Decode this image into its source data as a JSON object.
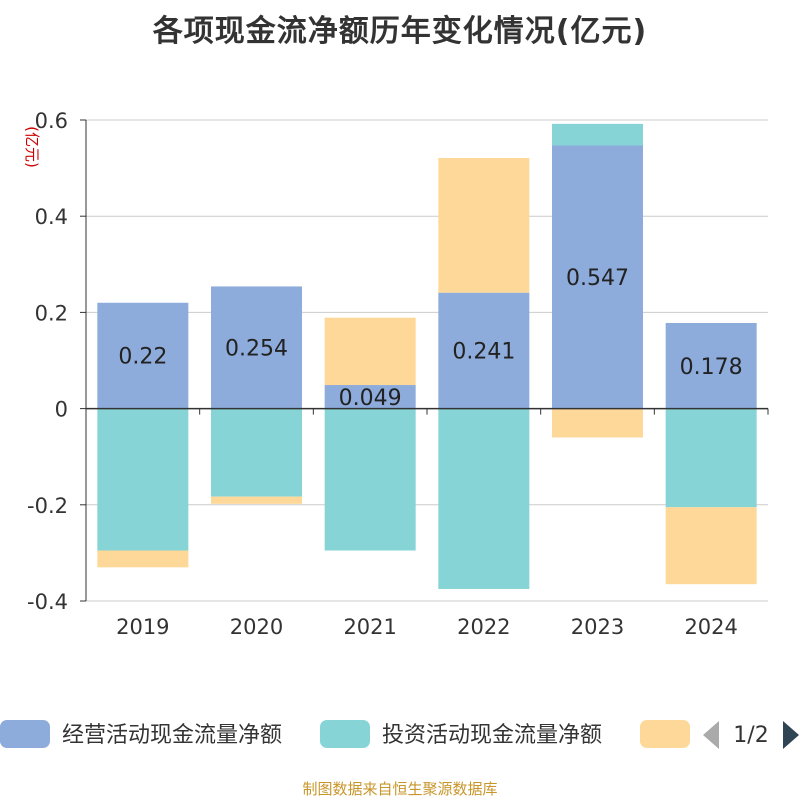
{
  "title": "各项现金流净额历年变化情况(亿元)",
  "footer": "制图数据来自恒生聚源数据库",
  "colors": {
    "operating": "#8dabdb",
    "investing": "#86d4d6",
    "financing": "#fed898",
    "axis": "#333333",
    "grid": "#cccccc",
    "unit": "#cc0000",
    "nav_active": "#2f4554",
    "nav_inactive": "#aaaaaa"
  },
  "legend": {
    "page_indicator": "1/2",
    "prev_icon": "triangle-left-icon",
    "next_icon": "triangle-right-icon"
  },
  "chart_data": {
    "type": "bar",
    "stacked": true,
    "unit_label": "(亿元)",
    "categories": [
      "2019",
      "2020",
      "2021",
      "2022",
      "2023",
      "2024"
    ],
    "ylim": [
      -0.4,
      0.6
    ],
    "yticks": [
      -0.4,
      -0.2,
      0,
      0.2,
      0.4,
      0.6
    ],
    "ytick_labels": [
      "-0.4",
      "-0.2",
      "0",
      "0.2",
      "0.4",
      "0.6"
    ],
    "grid": true,
    "series": [
      {
        "name": "经营活动现金流量净额",
        "color_key": "operating",
        "values": [
          0.22,
          0.254,
          0.049,
          0.241,
          0.547,
          0.178
        ],
        "labels": [
          "0.22",
          "0.254",
          "0.049",
          "0.241",
          "0.547",
          "0.178"
        ]
      },
      {
        "name": "投资活动现金流量净额",
        "color_key": "investing",
        "values": [
          -0.295,
          -0.183,
          -0.295,
          -0.375,
          0.045,
          -0.205
        ]
      },
      {
        "name": "",
        "color_key": "financing",
        "values": [
          -0.035,
          -0.015,
          0.14,
          0.28,
          -0.06,
          -0.16
        ]
      }
    ]
  }
}
